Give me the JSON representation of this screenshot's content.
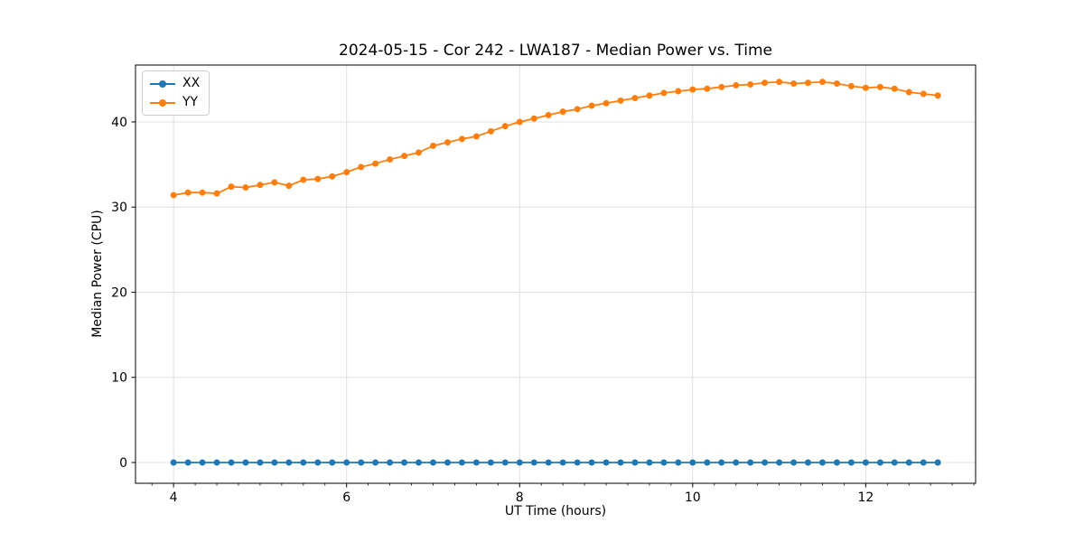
{
  "figure": {
    "title": "2024-05-15 - Cor 242 - LWA187 - Median Power vs. Time",
    "xlabel": "UT Time (hours)",
    "ylabel": "Median Power (CPU)"
  },
  "chart_data": {
    "type": "line",
    "title": "2024-05-15 - Cor 242 - LWA187 - Median Power vs. Time",
    "xlabel": "UT Time (hours)",
    "ylabel": "Median Power (CPU)",
    "xlim": [
      3.56,
      13.27
    ],
    "ylim": [
      -2.44,
      46.68
    ],
    "xticks": [
      4,
      6,
      8,
      10,
      12
    ],
    "yticks": [
      0,
      10,
      20,
      30,
      40
    ],
    "x_minor_tick_step": 0.25,
    "grid": true,
    "legend_position": "upper left",
    "x": [
      4.0,
      4.167,
      4.333,
      4.5,
      4.667,
      4.833,
      5.0,
      5.167,
      5.333,
      5.5,
      5.667,
      5.833,
      6.0,
      6.167,
      6.333,
      6.5,
      6.667,
      6.833,
      7.0,
      7.167,
      7.333,
      7.5,
      7.667,
      7.833,
      8.0,
      8.167,
      8.333,
      8.5,
      8.667,
      8.833,
      9.0,
      9.167,
      9.333,
      9.5,
      9.667,
      9.833,
      10.0,
      10.167,
      10.333,
      10.5,
      10.667,
      10.833,
      11.0,
      11.167,
      11.333,
      11.5,
      11.667,
      11.833,
      12.0,
      12.167,
      12.333,
      12.5,
      12.667,
      12.833
    ],
    "series": [
      {
        "name": "XX",
        "color": "#1f77b4",
        "values": [
          0,
          0,
          0,
          0,
          0,
          0,
          0,
          0,
          0,
          0,
          0,
          0,
          0,
          0,
          0,
          0,
          0,
          0,
          0,
          0,
          0,
          0,
          0,
          0,
          0,
          0,
          0,
          0,
          0,
          0,
          0,
          0,
          0,
          0,
          0,
          0,
          0,
          0,
          0,
          0,
          0,
          0,
          0,
          0,
          0,
          0,
          0,
          0,
          0,
          0,
          0,
          0,
          0,
          0
        ]
      },
      {
        "name": "YY",
        "color": "#ff7f0e",
        "values": [
          31.4,
          31.7,
          31.7,
          31.6,
          32.4,
          32.3,
          32.6,
          32.9,
          32.5,
          33.2,
          33.3,
          33.6,
          34.1,
          34.7,
          35.1,
          35.6,
          36.0,
          36.4,
          37.2,
          37.6,
          38.0,
          38.3,
          38.9,
          39.5,
          40.0,
          40.4,
          40.8,
          41.2,
          41.5,
          41.9,
          42.2,
          42.5,
          42.8,
          43.1,
          43.4,
          43.6,
          43.8,
          43.9,
          44.1,
          44.3,
          44.4,
          44.6,
          44.7,
          44.5,
          44.6,
          44.7,
          44.5,
          44.2,
          44.0,
          44.1,
          43.9,
          43.5,
          43.3,
          43.1
        ]
      }
    ],
    "style": {
      "grid_color": "#e0e0e0",
      "spine_color": "#000000",
      "tick_color": "#000000",
      "background": "#ffffff",
      "marker_radius": 3.5,
      "line_width": 1.8
    }
  }
}
